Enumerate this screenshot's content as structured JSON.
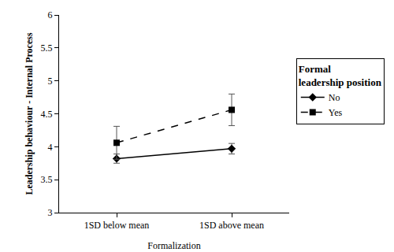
{
  "chart_data": {
    "type": "line",
    "x_label": "Formalization",
    "y_label": "Leadership behaviour - Internal Process",
    "legend_title": "Formal leadership position",
    "legend": "right",
    "grid": false,
    "categories": [
      "1SD below mean",
      "1SD above mean"
    ],
    "series": [
      {
        "name": "No",
        "color": "#000000",
        "marker": "diamond",
        "line_style": "solid",
        "values": [
          3.82,
          3.97
        ],
        "errors": [
          0.07,
          0.08
        ]
      },
      {
        "name": "Yes",
        "color": "#000000",
        "marker": "square",
        "line_style": "dash",
        "values": [
          4.06,
          4.56
        ],
        "errors": [
          0.25,
          0.24
        ]
      }
    ],
    "ylim": [
      3,
      6
    ],
    "yticks": [
      3,
      3.5,
      4,
      4.5,
      5,
      5.5,
      6
    ]
  }
}
